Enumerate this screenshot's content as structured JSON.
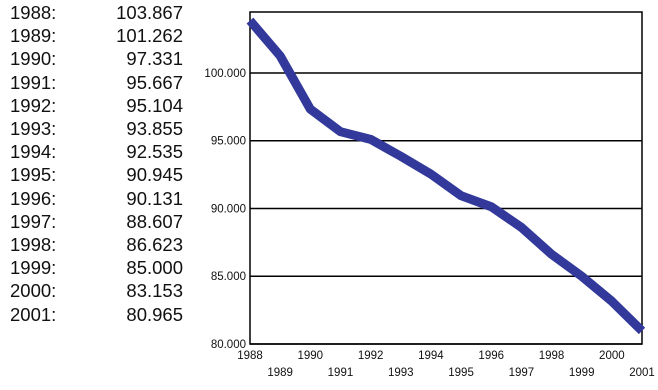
{
  "chart_data": {
    "type": "line",
    "title": "",
    "xlabel": "",
    "ylabel": "",
    "x": [
      1988,
      1989,
      1990,
      1991,
      1992,
      1993,
      1994,
      1995,
      1996,
      1997,
      1998,
      1999,
      2000,
      2001
    ],
    "series": [
      {
        "values": [
          103.867,
          101.262,
          97.331,
          95.667,
          95.104,
          93.855,
          92.535,
          90.945,
          90.131,
          88.607,
          86.623,
          85.0,
          83.153,
          80.965
        ]
      }
    ],
    "xlim": [
      1988,
      2001
    ],
    "ylim": [
      80,
      104.5
    ],
    "y_ticks": [
      "80.000",
      "85.000",
      "90.000",
      "95.000",
      "100.000"
    ],
    "x_ticks": [
      "1988",
      "1989",
      "1990",
      "1991",
      "1992",
      "1993",
      "1994",
      "1995",
      "1996",
      "1997",
      "1998",
      "1999",
      "2000",
      "2001"
    ],
    "grid": "horizontal",
    "line_color": "#33399a",
    "table": {
      "rows": [
        {
          "year": "1988:",
          "value": "103.867"
        },
        {
          "year": "1989:",
          "value": "101.262"
        },
        {
          "year": "1990:",
          "value": "97.331"
        },
        {
          "year": "1991:",
          "value": "95.667"
        },
        {
          "year": "1992:",
          "value": "95.104"
        },
        {
          "year": "1993:",
          "value": "93.855"
        },
        {
          "year": "1994:",
          "value": "92.535"
        },
        {
          "year": "1995:",
          "value": "90.945"
        },
        {
          "year": "1996:",
          "value": "90.131"
        },
        {
          "year": "1997:",
          "value": "88.607"
        },
        {
          "year": "1998:",
          "value": "86.623"
        },
        {
          "year": "1999:",
          "value": "85.000"
        },
        {
          "year": "2000:",
          "value": "83.153"
        },
        {
          "year": "2001:",
          "value": "80.965"
        }
      ]
    }
  }
}
